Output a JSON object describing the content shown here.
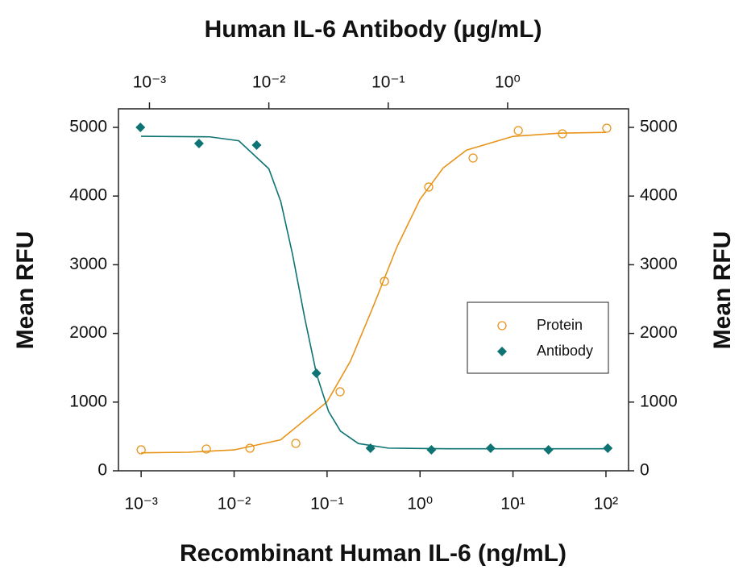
{
  "chart_data": {
    "type": "scatter",
    "xlabel": "Recombinant Human IL-6 (ng/mL)",
    "x2label": "Human IL-6 Antibody (μg/mL)",
    "ylabel": "Mean RFU",
    "y2label": "Mean RFU",
    "xscale": "log",
    "x2scale": "log",
    "xlim": [
      0.00057,
      175
    ],
    "xticks": [
      {
        "value": 0.001,
        "label": "10⁻³"
      },
      {
        "value": 0.01,
        "label": "10⁻²"
      },
      {
        "value": 0.1,
        "label": "10⁻¹"
      },
      {
        "value": 1,
        "label": "10⁰"
      },
      {
        "value": 10,
        "label": "10¹"
      },
      {
        "value": 100,
        "label": "10²"
      }
    ],
    "x2lim": [
      0.00055,
      10.3
    ],
    "x2ticks": [
      {
        "value": 0.001,
        "label": "10⁻³"
      },
      {
        "value": 0.01,
        "label": "10⁻²"
      },
      {
        "value": 0.1,
        "label": "10⁻¹"
      },
      {
        "value": 1,
        "label": "10⁰"
      }
    ],
    "ylim": [
      0,
      5270
    ],
    "yticks": [
      0,
      1000,
      2000,
      3000,
      4000,
      5000
    ],
    "y2lim": [
      0,
      5270
    ],
    "y2ticks": [
      0,
      1000,
      2000,
      3000,
      4000,
      5000
    ],
    "legend": "center right",
    "series": [
      {
        "name": "Protein",
        "color": "#e8941a",
        "marker": "open-circle",
        "axis": "x",
        "x": [
          0.001,
          0.00503,
          0.0148,
          0.0461,
          0.138,
          0.414,
          1.24,
          3.72,
          11.4,
          34.0,
          102
        ],
        "values": [
          305,
          317,
          329,
          399,
          1150,
          2758,
          4131,
          4554,
          4953,
          4906,
          4988
        ],
        "curve": {
          "x": [
            0.001,
            0.0032,
            0.01,
            0.0316,
            0.1,
            0.178,
            0.316,
            0.562,
            1,
            1.78,
            3.16,
            10,
            31.6,
            100
          ],
          "values": [
            262,
            270,
            304,
            450,
            1004,
            1594,
            2402,
            3254,
            3952,
            4411,
            4669,
            4869,
            4916,
            4927
          ]
        }
      },
      {
        "name": "Antibody",
        "color": "#0e7373",
        "marker": "diamond",
        "axis": "x2",
        "x": [
          0.00084,
          0.0026,
          0.0079,
          0.025,
          0.071,
          0.23,
          0.72,
          2.2,
          6.9
        ],
        "values": [
          5000,
          4765,
          4742,
          1420,
          329,
          305,
          329,
          305,
          329
        ],
        "curve": {
          "x": [
            0.00085,
            0.0032,
            0.0056,
            0.01,
            0.0126,
            0.0158,
            0.02,
            0.0251,
            0.0316,
            0.0398,
            0.0562,
            0.1,
            0.316,
            1,
            6.9
          ],
          "values": [
            4870,
            4862,
            4805,
            4397,
            3917,
            3150,
            2221,
            1406,
            867,
            577,
            397,
            330,
            321,
            320,
            320
          ]
        }
      }
    ]
  }
}
